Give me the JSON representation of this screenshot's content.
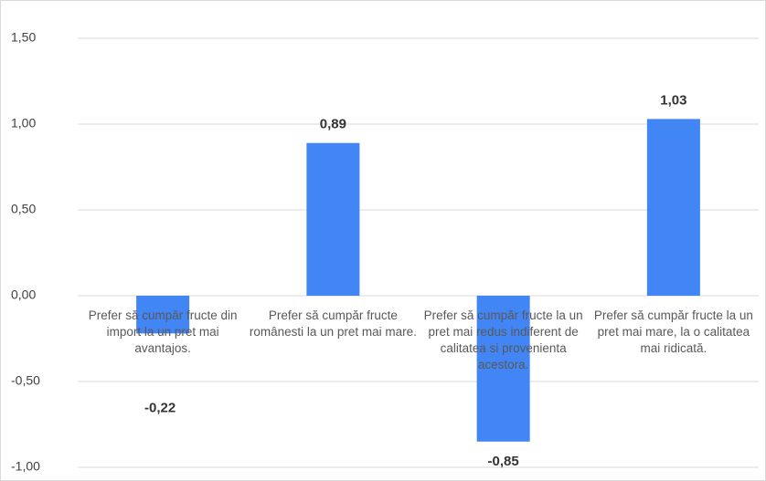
{
  "chart_data": {
    "type": "bar",
    "categories": [
      "Prefer să cumpăr fructe din import la un pret mai avantajos.",
      "Prefer să cumpăr fructe românesti la un pret mai mare.",
      "Prefer să cumpăr fructe la un pret mai redus indiferent de calitatea si provenienta acestora.",
      "Prefer să cumpăr fructe la un pret mai mare, la o calitatea mai ridicată."
    ],
    "values": [
      -0.22,
      0.89,
      -0.85,
      1.03
    ],
    "value_labels": [
      "-0,22",
      "0,89",
      "-0,85",
      "1,03"
    ],
    "color": "#4285f4",
    "ylim": [
      -1.0,
      1.5
    ],
    "yticks": [
      {
        "value": -1.0,
        "label": "-1,00"
      },
      {
        "value": -0.5,
        "label": "-0,50"
      },
      {
        "value": 0,
        "label": "0,00"
      },
      {
        "value": 0.5,
        "label": "0,50"
      },
      {
        "value": 1.0,
        "label": "1,00"
      },
      {
        "value": 1.5,
        "label": "1,50"
      }
    ],
    "grid": true
  }
}
